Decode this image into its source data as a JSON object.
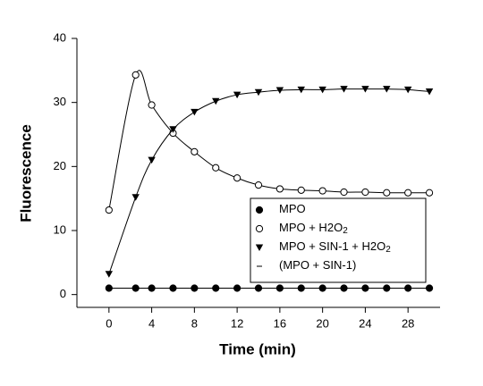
{
  "chart_data": {
    "type": "line",
    "xlabel": "Time (min)",
    "ylabel": "Fluorescence",
    "x": [
      0,
      2.5,
      4,
      6,
      8,
      10,
      12,
      14,
      16,
      18,
      20,
      22,
      24,
      26,
      28,
      30
    ],
    "series": [
      {
        "name": "MPO",
        "color": "#000000",
        "marker": "filled-circle",
        "values": [
          1,
          1,
          1,
          1,
          1,
          1,
          1,
          1,
          1,
          1,
          1,
          1,
          1,
          1,
          1,
          1
        ]
      },
      {
        "name": "MPO + H2O2",
        "color": "#000000",
        "marker": "open-circle",
        "values": [
          13.2,
          34.3,
          29.6,
          25.2,
          22.3,
          19.8,
          18.2,
          17.1,
          16.5,
          16.3,
          16.2,
          16.0,
          16.0,
          15.9,
          15.9,
          15.9
        ]
      },
      {
        "name": "MPO + SIN-1 + H2O2",
        "color": "#000000",
        "marker": "filled-triangle-down",
        "values": [
          3.2,
          15.2,
          21,
          25.8,
          28.5,
          30.2,
          31.2,
          31.6,
          31.9,
          32.0,
          32.0,
          32.1,
          32.1,
          32.1,
          32.0,
          31.7
        ]
      },
      {
        "name": "(MPO + SIN-1)",
        "color": "#000000",
        "marker": "dash",
        "values": [
          1,
          1,
          1,
          1,
          1,
          1,
          1,
          1,
          1,
          1,
          1,
          1,
          1,
          1,
          1,
          1
        ]
      }
    ],
    "xlim": [
      -3,
      31
    ],
    "xticks": [
      0,
      4,
      8,
      12,
      16,
      20,
      24,
      28
    ],
    "ylim": [
      -2,
      40
    ],
    "yticks": [
      0,
      10,
      20,
      30,
      40
    ],
    "grid": false,
    "legend": "lower right"
  }
}
